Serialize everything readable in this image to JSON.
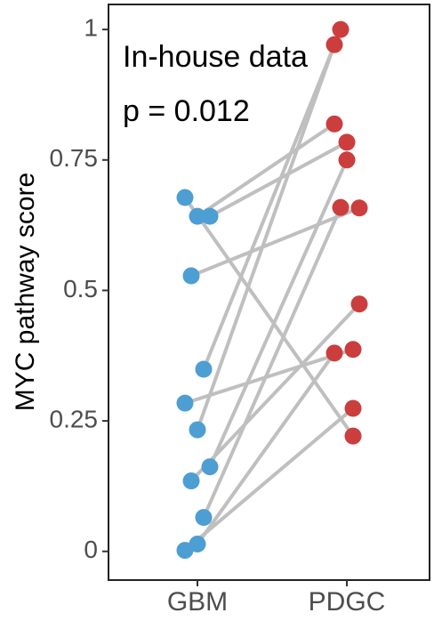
{
  "chart_data": {
    "type": "paired-dot",
    "annotations": [
      "In-house data",
      "p = 0.012"
    ],
    "y_label": "MYC pathway score",
    "categories": [
      "GBM",
      "PDGC"
    ],
    "colors": [
      "#4d9ed3",
      "#cc3d3d"
    ],
    "line_color": "#bfbfbf",
    "pairs": [
      [
        0.678,
        0.221
      ],
      [
        0.642,
        0.819
      ],
      [
        0.642,
        0.784
      ],
      [
        0.528,
        0.658
      ],
      [
        0.349,
        1.0
      ],
      [
        0.284,
        0.387
      ],
      [
        0.233,
        0.971
      ],
      [
        0.162,
        0.75
      ],
      [
        0.135,
        0.474
      ],
      [
        0.065,
        0.659
      ],
      [
        0.002,
        0.274
      ],
      [
        0.014,
        0.38
      ]
    ],
    "ylim": [
      -0.055,
      1.048
    ],
    "yticks": [
      0,
      0.25,
      0.5,
      0.75,
      1
    ]
  }
}
